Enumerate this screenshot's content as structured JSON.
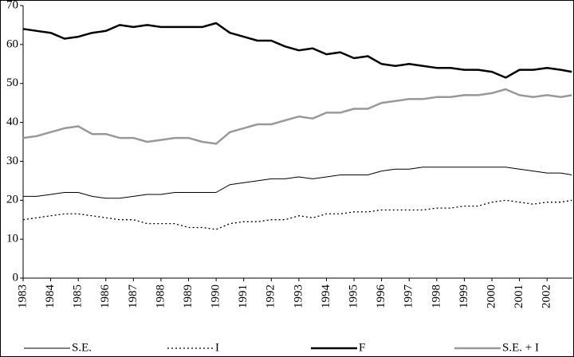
{
  "chart_data": {
    "type": "line",
    "x": [
      1983,
      1983.5,
      1984,
      1984.5,
      1985,
      1985.5,
      1986,
      1986.5,
      1987,
      1987.5,
      1988,
      1988.5,
      1989,
      1989.5,
      1990,
      1990.5,
      1991,
      1991.5,
      1992,
      1992.5,
      1993,
      1993.5,
      1994,
      1994.5,
      1995,
      1995.5,
      1996,
      1996.5,
      1997,
      1997.5,
      1998,
      1998.5,
      1999,
      1999.5,
      2000,
      2000.5,
      2001,
      2001.5,
      2002,
      2002.5,
      2002.9
    ],
    "series": [
      {
        "name": "S.E.",
        "color": "#000000",
        "linewidth": 1,
        "dashed": false,
        "values": [
          21,
          21,
          21.5,
          22,
          22,
          21,
          20.5,
          20.5,
          21,
          21.5,
          21.5,
          22,
          22,
          22,
          22,
          24,
          24.5,
          25,
          25.5,
          25.5,
          26,
          25.5,
          26,
          26.5,
          26.5,
          26.5,
          27.5,
          28,
          28,
          28.5,
          28.5,
          28.5,
          28.5,
          28.5,
          28.5,
          28.5,
          28,
          27.5,
          27,
          27,
          26.5
        ]
      },
      {
        "name": "I",
        "color": "#000000",
        "linewidth": 1.3,
        "dashed": true,
        "values": [
          15,
          15.5,
          16,
          16.5,
          16.5,
          16,
          15.5,
          15,
          15,
          14,
          14,
          14,
          13,
          13,
          12.5,
          14,
          14.5,
          14.5,
          15,
          15,
          16,
          15.5,
          16.5,
          16.5,
          17,
          17,
          17.5,
          17.5,
          17.5,
          17.5,
          18,
          18,
          18.5,
          18.5,
          19.5,
          20,
          19.5,
          19,
          19.5,
          19.5,
          20
        ]
      },
      {
        "name": "F",
        "color": "#000000",
        "linewidth": 2.5,
        "dashed": false,
        "values": [
          64,
          63.5,
          63,
          61.5,
          62,
          63,
          63.5,
          65,
          64.5,
          65,
          64.5,
          64.5,
          64.5,
          64.5,
          65.5,
          63,
          62,
          61,
          61,
          59.5,
          58.5,
          59,
          57.5,
          58,
          56.5,
          57,
          55,
          54.5,
          55,
          54.5,
          54,
          54,
          53.5,
          53.5,
          53,
          51.5,
          53.5,
          53.5,
          54,
          53.5,
          53
        ]
      },
      {
        "name": "S.E. + I",
        "color": "#999999",
        "linewidth": 2.5,
        "dashed": false,
        "values": [
          36,
          36.5,
          37.5,
          38.5,
          39,
          37,
          37,
          36,
          36,
          35,
          35.5,
          36,
          36,
          35,
          34.5,
          37.5,
          38.5,
          39.5,
          39.5,
          40.5,
          41.5,
          41,
          42.5,
          42.5,
          43.5,
          43.5,
          45,
          45.5,
          46,
          46,
          46.5,
          46.5,
          47,
          47,
          47.5,
          48.5,
          47,
          46.5,
          47,
          46.5,
          47
        ]
      }
    ],
    "xlim": [
      1983,
      2002.92
    ],
    "xticks": [
      1983,
      1984,
      1985,
      1986,
      1987,
      1988,
      1989,
      1990,
      1991,
      1992,
      1993,
      1994,
      1995,
      1996,
      1997,
      1998,
      1999,
      2000,
      2001,
      2002
    ],
    "ylim": [
      0,
      70
    ],
    "yticks": [
      0,
      10,
      20,
      30,
      40,
      50,
      60,
      70
    ],
    "grid": false,
    "legend": "bottom"
  }
}
